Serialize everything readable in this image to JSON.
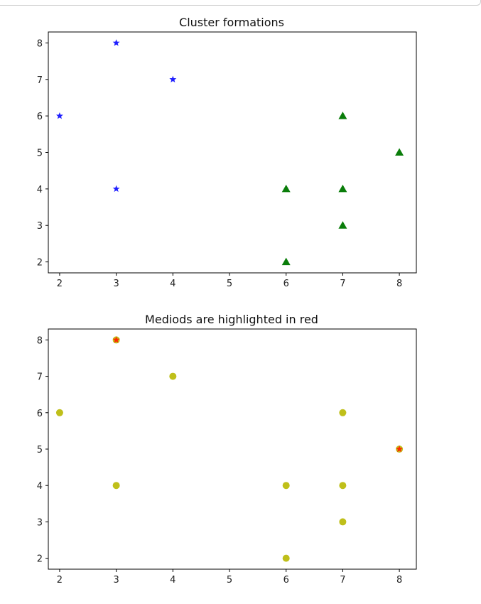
{
  "chart_data": [
    {
      "type": "scatter",
      "title": "Cluster formations",
      "xlabel": "",
      "ylabel": "",
      "xlim": [
        1.8,
        8.3
      ],
      "ylim": [
        1.7,
        8.3
      ],
      "xticks": [
        2,
        3,
        4,
        5,
        6,
        7,
        8
      ],
      "yticks": [
        2,
        3,
        4,
        5,
        6,
        7,
        8
      ],
      "grid": false,
      "series": [
        {
          "marker": "star",
          "color": "#1f1fff",
          "points": [
            [
              2,
              6
            ],
            [
              3,
              8
            ],
            [
              3,
              4
            ],
            [
              4,
              7
            ]
          ]
        },
        {
          "marker": "triangle",
          "color": "#0a7d0a",
          "points": [
            [
              6,
              2
            ],
            [
              6,
              4
            ],
            [
              7,
              3
            ],
            [
              7,
              4
            ],
            [
              7,
              6
            ],
            [
              8,
              5
            ]
          ]
        }
      ]
    },
    {
      "type": "scatter",
      "title": "Mediods are highlighted in red",
      "xlabel": "",
      "ylabel": "",
      "xlim": [
        1.8,
        8.3
      ],
      "ylim": [
        1.7,
        8.3
      ],
      "xticks": [
        2,
        3,
        4,
        5,
        6,
        7,
        8
      ],
      "yticks": [
        2,
        3,
        4,
        5,
        6,
        7,
        8
      ],
      "grid": false,
      "series": [
        {
          "marker": "circle",
          "color": "#bfbf1a",
          "points": [
            [
              2,
              6
            ],
            [
              3,
              8
            ],
            [
              3,
              4
            ],
            [
              4,
              7
            ],
            [
              6,
              2
            ],
            [
              6,
              4
            ],
            [
              7,
              3
            ],
            [
              7,
              4
            ],
            [
              7,
              6
            ],
            [
              8,
              5
            ]
          ]
        },
        {
          "marker": "star",
          "color": "#ff2a00",
          "points": [
            [
              3,
              8
            ],
            [
              8,
              5
            ]
          ]
        }
      ]
    }
  ]
}
